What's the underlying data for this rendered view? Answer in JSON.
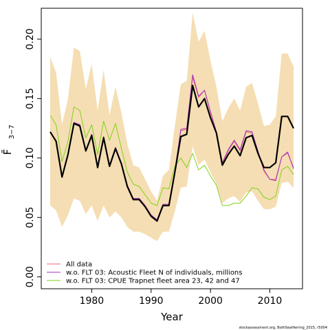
{
  "chart_data": {
    "type": "line",
    "xlabel": "Year",
    "ylabel": "F̄",
    "ylabel_sub": "3−7",
    "footer": "stockassessment.org, BothSeaHerring_2015, r5004",
    "xlim": [
      1971.5,
      2015.5
    ],
    "ylim": [
      -0.01,
      0.226
    ],
    "x_ticks": [
      1980,
      1990,
      2000,
      2010
    ],
    "y_ticks": [
      0.0,
      0.05,
      0.1,
      0.15,
      0.2
    ],
    "y_tick_labels": [
      "0.00",
      "0.05",
      "0.10",
      "0.15",
      "0.20"
    ],
    "x": [
      1973,
      1974,
      1975,
      1976,
      1977,
      1978,
      1979,
      1980,
      1981,
      1982,
      1983,
      1984,
      1985,
      1986,
      1987,
      1988,
      1989,
      1990,
      1991,
      1992,
      1993,
      1994,
      1995,
      1996,
      1997,
      1998,
      1999,
      2000,
      2001,
      2002,
      2003,
      2004,
      2005,
      2006,
      2007,
      2008,
      2009,
      2010,
      2011,
      2012,
      2013,
      2014
    ],
    "band": {
      "color": "#f5deb3",
      "upper": [
        0.185,
        0.172,
        0.128,
        0.15,
        0.193,
        0.19,
        0.158,
        0.179,
        0.14,
        0.174,
        0.136,
        0.16,
        0.138,
        0.112,
        0.094,
        0.092,
        0.082,
        0.072,
        0.064,
        0.085,
        0.09,
        0.127,
        0.162,
        0.165,
        0.222,
        0.198,
        0.207,
        0.182,
        0.16,
        0.131,
        0.142,
        0.15,
        0.14,
        0.16,
        0.163,
        0.146,
        0.127,
        0.128,
        0.135,
        0.188,
        0.188,
        0.177
      ],
      "lower": [
        0.06,
        0.056,
        0.042,
        0.052,
        0.066,
        0.064,
        0.053,
        0.06,
        0.047,
        0.06,
        0.05,
        0.055,
        0.05,
        0.042,
        0.038,
        0.038,
        0.036,
        0.033,
        0.03,
        0.038,
        0.038,
        0.055,
        0.075,
        0.076,
        0.11,
        0.094,
        0.099,
        0.088,
        0.078,
        0.062,
        0.066,
        0.068,
        0.063,
        0.071,
        0.072,
        0.064,
        0.057,
        0.057,
        0.059,
        0.079,
        0.08,
        0.075
      ]
    },
    "series": [
      {
        "name": "All data",
        "color": "#f2607c",
        "width": 1,
        "values": [
          0.122,
          0.114,
          0.085,
          0.103,
          0.13,
          0.128,
          0.106,
          0.12,
          0.093,
          0.118,
          0.094,
          0.109,
          0.095,
          0.077,
          0.066,
          0.066,
          0.06,
          0.052,
          0.048,
          0.061,
          0.061,
          0.089,
          0.123,
          0.124,
          0.168,
          0.151,
          0.157,
          0.138,
          0.122,
          0.095,
          0.106,
          0.114,
          0.106,
          0.122,
          0.121,
          0.105,
          0.089,
          0.082,
          0.082,
          0.101,
          0.104,
          0.092
        ]
      },
      {
        "name": "w.o. FLT 03: Acoustic Fleet   N of individuals, millions",
        "color": "#9b30c0",
        "width": 1,
        "values": [
          0.122,
          0.114,
          0.085,
          0.103,
          0.13,
          0.128,
          0.106,
          0.12,
          0.093,
          0.118,
          0.094,
          0.109,
          0.095,
          0.077,
          0.066,
          0.066,
          0.06,
          0.052,
          0.048,
          0.061,
          0.061,
          0.089,
          0.124,
          0.125,
          0.17,
          0.152,
          0.157,
          0.139,
          0.122,
          0.096,
          0.107,
          0.115,
          0.107,
          0.123,
          0.122,
          0.106,
          0.09,
          0.082,
          0.081,
          0.101,
          0.105,
          0.091
        ]
      },
      {
        "name": "w.o. FLT 03: CPUE Trapnet fleet area 23, 42 and 47",
        "color": "#7fd11b",
        "width": 1,
        "values": [
          0.136,
          0.128,
          0.097,
          0.114,
          0.143,
          0.14,
          0.117,
          0.128,
          0.103,
          0.131,
          0.115,
          0.129,
          0.108,
          0.088,
          0.078,
          0.076,
          0.069,
          0.062,
          0.06,
          0.075,
          0.074,
          0.093,
          0.1,
          0.092,
          0.104,
          0.09,
          0.094,
          0.085,
          0.077,
          0.06,
          0.06,
          0.062,
          0.062,
          0.068,
          0.075,
          0.074,
          0.067,
          0.065,
          0.068,
          0.09,
          0.093,
          0.086
        ]
      },
      {
        "name": "",
        "color": "#000000",
        "width": 2.2,
        "values": [
          0.122,
          0.114,
          0.084,
          0.103,
          0.129,
          0.127,
          0.106,
          0.119,
          0.092,
          0.117,
          0.093,
          0.108,
          0.095,
          0.076,
          0.065,
          0.065,
          0.059,
          0.051,
          0.047,
          0.06,
          0.06,
          0.088,
          0.118,
          0.12,
          0.161,
          0.143,
          0.15,
          0.134,
          0.121,
          0.094,
          0.103,
          0.11,
          0.102,
          0.117,
          0.119,
          0.104,
          0.092,
          0.092,
          0.096,
          0.135,
          0.135,
          0.125
        ]
      }
    ],
    "legend_position": "bottom-left"
  }
}
